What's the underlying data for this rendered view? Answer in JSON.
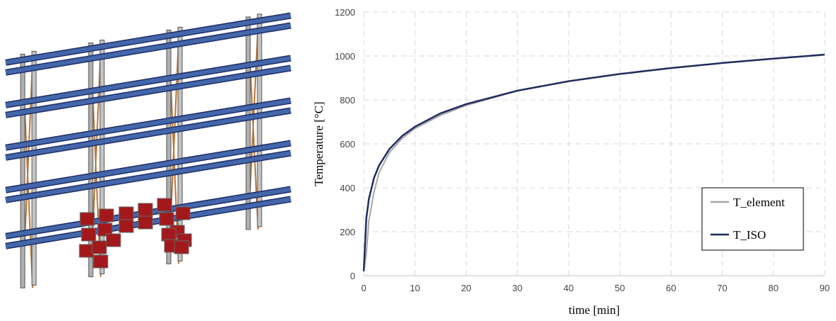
{
  "chart_data": {
    "type": "line",
    "xlabel": "time [min]",
    "ylabel": "Temperature [°C]",
    "x": [
      0,
      0.5,
      1,
      2,
      3,
      5,
      7.5,
      10,
      15,
      20,
      30,
      40,
      50,
      60,
      70,
      80,
      90
    ],
    "series": [
      {
        "name": "T_element",
        "color": "#a6a6a6",
        "values": [
          20,
          100,
          250,
          380,
          470,
          560,
          625,
          670,
          730,
          775,
          842,
          885,
          918,
          945,
          968,
          988,
          1006
        ]
      },
      {
        "name": "T_ISO",
        "color": "#1f2d5c",
        "values": [
          20,
          261,
          349,
          445,
          502,
          576,
          636,
          678,
          739,
          781,
          842,
          885,
          918,
          945,
          968,
          988,
          1006
        ]
      }
    ],
    "xlim": [
      0,
      90
    ],
    "xticks": [
      0,
      10,
      20,
      30,
      40,
      50,
      60,
      70,
      80,
      90
    ],
    "ylim": [
      0,
      1200
    ],
    "yticks": [
      0,
      200,
      400,
      600,
      800,
      1000,
      1200
    ],
    "grid": true,
    "legend": "lower right"
  }
}
